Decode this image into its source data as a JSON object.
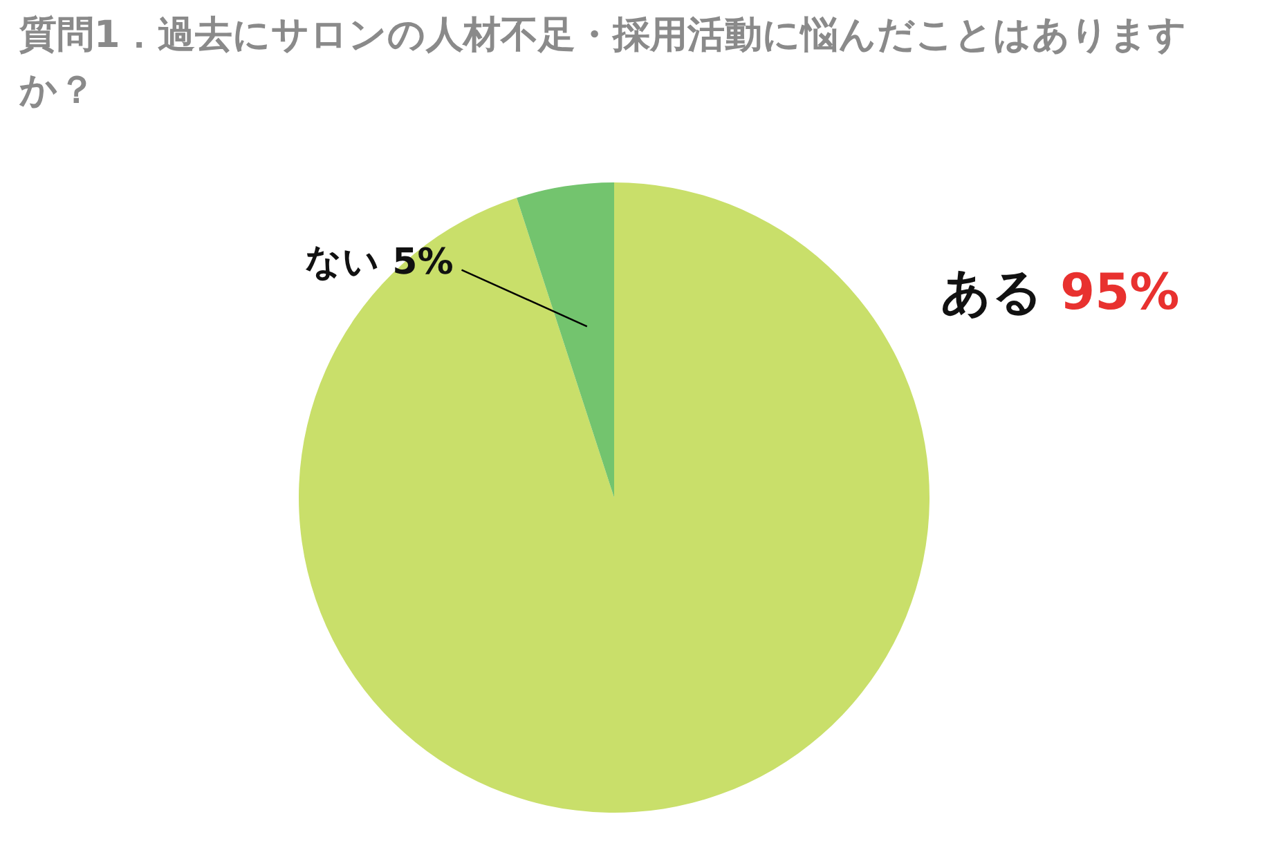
{
  "chart_data": {
    "type": "pie",
    "title": "質問1．過去にサロンの人材不足・採用活動に悩んだことはありますか？",
    "categories": [
      "ある",
      "ない"
    ],
    "values": [
      95,
      5
    ],
    "colors": [
      "#c9df6a",
      "#73c46e"
    ],
    "value_labels": [
      "95%",
      "5%"
    ],
    "legend": false
  }
}
